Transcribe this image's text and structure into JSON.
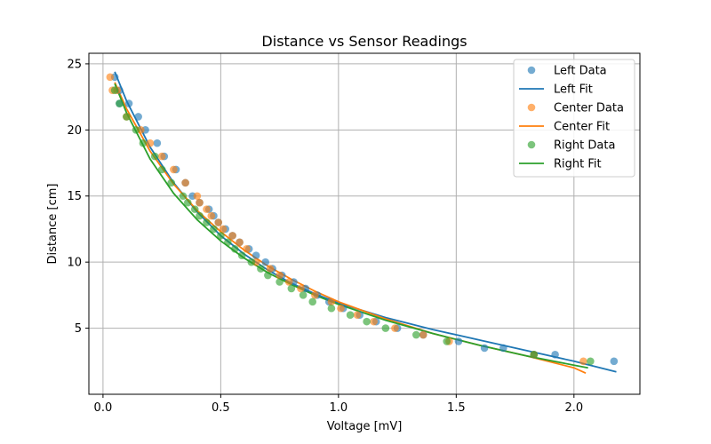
{
  "chart_data": {
    "type": "scatter",
    "title": "Distance vs Sensor Readings",
    "xlabel": "Voltage [mV]",
    "ylabel": "Distance [cm]",
    "xlim": [
      -0.06,
      2.28
    ],
    "ylim": [
      0.0,
      25.8
    ],
    "xticks": [
      0.0,
      0.5,
      1.0,
      1.5,
      2.0
    ],
    "xtick_labels": [
      "0.0",
      "0.5",
      "1.0",
      "1.5",
      "2.0"
    ],
    "yticks": [
      5,
      10,
      15,
      20,
      25
    ],
    "ytick_labels": [
      "5",
      "10",
      "15",
      "20",
      "25"
    ],
    "grid": true,
    "legend_position": "top-right",
    "series": [
      {
        "name": "Left Data",
        "kind": "scatter",
        "color": "#1f77b4",
        "points": [
          [
            0.05,
            24
          ],
          [
            0.07,
            23
          ],
          [
            0.07,
            22
          ],
          [
            0.11,
            22
          ],
          [
            0.15,
            21
          ],
          [
            0.18,
            20
          ],
          [
            0.23,
            19
          ],
          [
            0.26,
            18
          ],
          [
            0.31,
            17
          ],
          [
            0.35,
            16
          ],
          [
            0.38,
            15
          ],
          [
            0.41,
            14.5
          ],
          [
            0.45,
            14
          ],
          [
            0.47,
            13.5
          ],
          [
            0.49,
            13
          ],
          [
            0.52,
            12.5
          ],
          [
            0.55,
            12
          ],
          [
            0.58,
            11.5
          ],
          [
            0.62,
            11
          ],
          [
            0.65,
            10.5
          ],
          [
            0.69,
            10
          ],
          [
            0.72,
            9.5
          ],
          [
            0.76,
            9
          ],
          [
            0.81,
            8.5
          ],
          [
            0.86,
            8
          ],
          [
            0.91,
            7.5
          ],
          [
            0.96,
            7
          ],
          [
            1.02,
            6.5
          ],
          [
            1.09,
            6
          ],
          [
            1.16,
            5.5
          ],
          [
            1.25,
            5
          ],
          [
            1.36,
            4.5
          ],
          [
            1.51,
            4
          ],
          [
            1.62,
            3.5
          ],
          [
            1.7,
            3.5
          ],
          [
            1.83,
            3
          ],
          [
            1.92,
            3
          ],
          [
            2.17,
            2.5
          ]
        ]
      },
      {
        "name": "Left Fit",
        "kind": "line",
        "color": "#1f77b4",
        "points": [
          [
            0.05,
            24.4
          ],
          [
            0.1,
            22.2
          ],
          [
            0.2,
            18.7
          ],
          [
            0.3,
            16.0
          ],
          [
            0.4,
            13.8
          ],
          [
            0.5,
            12.0
          ],
          [
            0.6,
            10.6
          ],
          [
            0.7,
            9.4
          ],
          [
            0.8,
            8.4
          ],
          [
            0.9,
            7.6
          ],
          [
            1.0,
            6.9
          ],
          [
            1.2,
            5.8
          ],
          [
            1.4,
            4.9
          ],
          [
            1.6,
            4.1
          ],
          [
            1.8,
            3.3
          ],
          [
            2.0,
            2.5
          ],
          [
            2.18,
            1.7
          ]
        ]
      },
      {
        "name": "Center Data",
        "kind": "scatter",
        "color": "#ff7f0e",
        "points": [
          [
            0.03,
            24
          ],
          [
            0.04,
            23
          ],
          [
            0.06,
            23
          ],
          [
            0.1,
            21
          ],
          [
            0.16,
            20
          ],
          [
            0.2,
            19
          ],
          [
            0.25,
            18
          ],
          [
            0.3,
            17
          ],
          [
            0.35,
            16
          ],
          [
            0.4,
            15
          ],
          [
            0.41,
            14.5
          ],
          [
            0.44,
            14
          ],
          [
            0.46,
            13.5
          ],
          [
            0.49,
            13
          ],
          [
            0.51,
            12.5
          ],
          [
            0.55,
            12
          ],
          [
            0.58,
            11.5
          ],
          [
            0.61,
            11
          ],
          [
            0.65,
            10
          ],
          [
            0.71,
            9.5
          ],
          [
            0.75,
            9
          ],
          [
            0.79,
            8.5
          ],
          [
            0.84,
            8
          ],
          [
            0.9,
            7.5
          ],
          [
            0.97,
            7
          ],
          [
            1.01,
            6.5
          ],
          [
            1.08,
            6
          ],
          [
            1.15,
            5.5
          ],
          [
            1.24,
            5
          ],
          [
            1.36,
            4.5
          ],
          [
            1.47,
            4
          ],
          [
            1.83,
            3
          ],
          [
            2.04,
            2.5
          ]
        ]
      },
      {
        "name": "Center Fit",
        "kind": "line",
        "color": "#ff7f0e",
        "points": [
          [
            0.05,
            23.6
          ],
          [
            0.1,
            21.6
          ],
          [
            0.2,
            18.4
          ],
          [
            0.3,
            15.9
          ],
          [
            0.4,
            13.9
          ],
          [
            0.5,
            12.3
          ],
          [
            0.6,
            10.9
          ],
          [
            0.7,
            9.7
          ],
          [
            0.8,
            8.7
          ],
          [
            0.9,
            7.8
          ],
          [
            1.0,
            7.0
          ],
          [
            1.2,
            5.7
          ],
          [
            1.4,
            4.6
          ],
          [
            1.6,
            3.7
          ],
          [
            1.8,
            2.9
          ],
          [
            2.0,
            2.0
          ],
          [
            2.05,
            1.6
          ]
        ]
      },
      {
        "name": "Right Data",
        "kind": "scatter",
        "color": "#2ca02c",
        "points": [
          [
            0.05,
            23
          ],
          [
            0.07,
            22
          ],
          [
            0.1,
            21
          ],
          [
            0.14,
            20
          ],
          [
            0.17,
            19
          ],
          [
            0.22,
            18
          ],
          [
            0.25,
            17
          ],
          [
            0.29,
            16
          ],
          [
            0.34,
            15
          ],
          [
            0.36,
            14.5
          ],
          [
            0.39,
            14
          ],
          [
            0.41,
            13.5
          ],
          [
            0.44,
            13
          ],
          [
            0.47,
            12.5
          ],
          [
            0.5,
            12
          ],
          [
            0.53,
            11.5
          ],
          [
            0.56,
            11
          ],
          [
            0.59,
            10.5
          ],
          [
            0.63,
            10
          ],
          [
            0.67,
            9.5
          ],
          [
            0.7,
            9
          ],
          [
            0.75,
            8.5
          ],
          [
            0.8,
            8
          ],
          [
            0.85,
            7.5
          ],
          [
            0.89,
            7
          ],
          [
            0.97,
            6.5
          ],
          [
            1.05,
            6
          ],
          [
            1.12,
            5.5
          ],
          [
            1.2,
            5
          ],
          [
            1.33,
            4.5
          ],
          [
            1.46,
            4
          ],
          [
            1.83,
            3
          ],
          [
            2.07,
            2.5
          ]
        ]
      },
      {
        "name": "Right Fit",
        "kind": "line",
        "color": "#2ca02c",
        "points": [
          [
            0.05,
            23.5
          ],
          [
            0.1,
            21.3
          ],
          [
            0.2,
            17.8
          ],
          [
            0.3,
            15.2
          ],
          [
            0.4,
            13.2
          ],
          [
            0.5,
            11.6
          ],
          [
            0.6,
            10.3
          ],
          [
            0.7,
            9.2
          ],
          [
            0.8,
            8.3
          ],
          [
            0.9,
            7.5
          ],
          [
            1.0,
            6.8
          ],
          [
            1.2,
            5.6
          ],
          [
            1.4,
            4.6
          ],
          [
            1.6,
            3.7
          ],
          [
            1.8,
            2.9
          ],
          [
            2.0,
            2.2
          ],
          [
            2.06,
            2.0
          ]
        ]
      }
    ]
  }
}
